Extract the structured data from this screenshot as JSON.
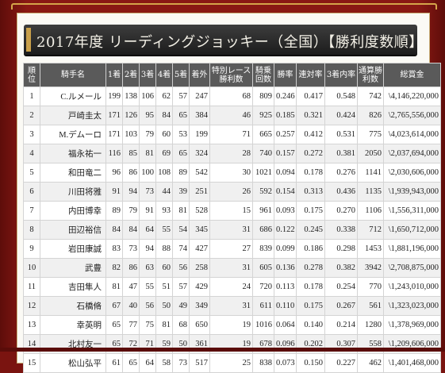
{
  "page": {
    "title": "2017年度 リーディングジョッキー（全国）【勝利度数順】"
  },
  "table": {
    "headers": [
      "順位",
      "騎手名",
      "1着",
      "2着",
      "3着",
      "4着",
      "5着",
      "着外",
      "特別レース勝利数",
      "騎乗回数",
      "勝率",
      "連対率",
      "3着内率",
      "通算勝利数",
      "総賞金"
    ],
    "rows": [
      [
        "1",
        "C.ルメール",
        "199",
        "138",
        "106",
        "62",
        "57",
        "247",
        "68",
        "809",
        "0.246",
        "0.417",
        "0.548",
        "742",
        "\\4,146,220,000"
      ],
      [
        "2",
        "戸崎圭太",
        "171",
        "126",
        "95",
        "84",
        "65",
        "384",
        "46",
        "925",
        "0.185",
        "0.321",
        "0.424",
        "826",
        "\\2,765,556,000"
      ],
      [
        "3",
        "M.デムーロ",
        "171",
        "103",
        "79",
        "60",
        "53",
        "199",
        "71",
        "665",
        "0.257",
        "0.412",
        "0.531",
        "775",
        "\\4,023,614,000"
      ],
      [
        "4",
        "福永祐一",
        "116",
        "85",
        "81",
        "69",
        "65",
        "324",
        "28",
        "740",
        "0.157",
        "0.272",
        "0.381",
        "2050",
        "\\2,037,694,000"
      ],
      [
        "5",
        "和田竜二",
        "96",
        "86",
        "100",
        "108",
        "89",
        "542",
        "30",
        "1021",
        "0.094",
        "0.178",
        "0.276",
        "1141",
        "\\2,030,606,000"
      ],
      [
        "6",
        "川田将雅",
        "91",
        "94",
        "73",
        "44",
        "39",
        "251",
        "26",
        "592",
        "0.154",
        "0.313",
        "0.436",
        "1135",
        "\\1,939,943,000"
      ],
      [
        "7",
        "内田博幸",
        "89",
        "79",
        "91",
        "93",
        "81",
        "528",
        "15",
        "961",
        "0.093",
        "0.175",
        "0.270",
        "1106",
        "\\1,556,311,000"
      ],
      [
        "8",
        "田辺裕信",
        "84",
        "84",
        "64",
        "55",
        "54",
        "345",
        "31",
        "686",
        "0.122",
        "0.245",
        "0.338",
        "712",
        "\\1,650,712,000"
      ],
      [
        "9",
        "岩田康誠",
        "83",
        "73",
        "94",
        "88",
        "74",
        "427",
        "27",
        "839",
        "0.099",
        "0.186",
        "0.298",
        "1453",
        "\\1,881,196,000"
      ],
      [
        "10",
        "武豊",
        "82",
        "86",
        "63",
        "60",
        "56",
        "258",
        "31",
        "605",
        "0.136",
        "0.278",
        "0.382",
        "3942",
        "\\2,708,875,000"
      ],
      [
        "11",
        "吉田隼人",
        "81",
        "47",
        "55",
        "51",
        "57",
        "429",
        "24",
        "720",
        "0.113",
        "0.178",
        "0.254",
        "770",
        "\\1,243,010,000"
      ],
      [
        "12",
        "石橋脩",
        "67",
        "40",
        "56",
        "50",
        "49",
        "349",
        "31",
        "611",
        "0.110",
        "0.175",
        "0.267",
        "561",
        "\\1,323,023,000"
      ],
      [
        "13",
        "幸英明",
        "65",
        "77",
        "75",
        "81",
        "68",
        "650",
        "19",
        "1016",
        "0.064",
        "0.140",
        "0.214",
        "1280",
        "\\1,378,969,000"
      ],
      [
        "14",
        "北村友一",
        "65",
        "72",
        "71",
        "59",
        "50",
        "361",
        "19",
        "678",
        "0.096",
        "0.202",
        "0.307",
        "558",
        "\\1,209,606,000"
      ],
      [
        "15",
        "松山弘平",
        "61",
        "65",
        "64",
        "58",
        "73",
        "517",
        "25",
        "838",
        "0.073",
        "0.150",
        "0.227",
        "462",
        "\\1,401,468,000"
      ]
    ]
  }
}
